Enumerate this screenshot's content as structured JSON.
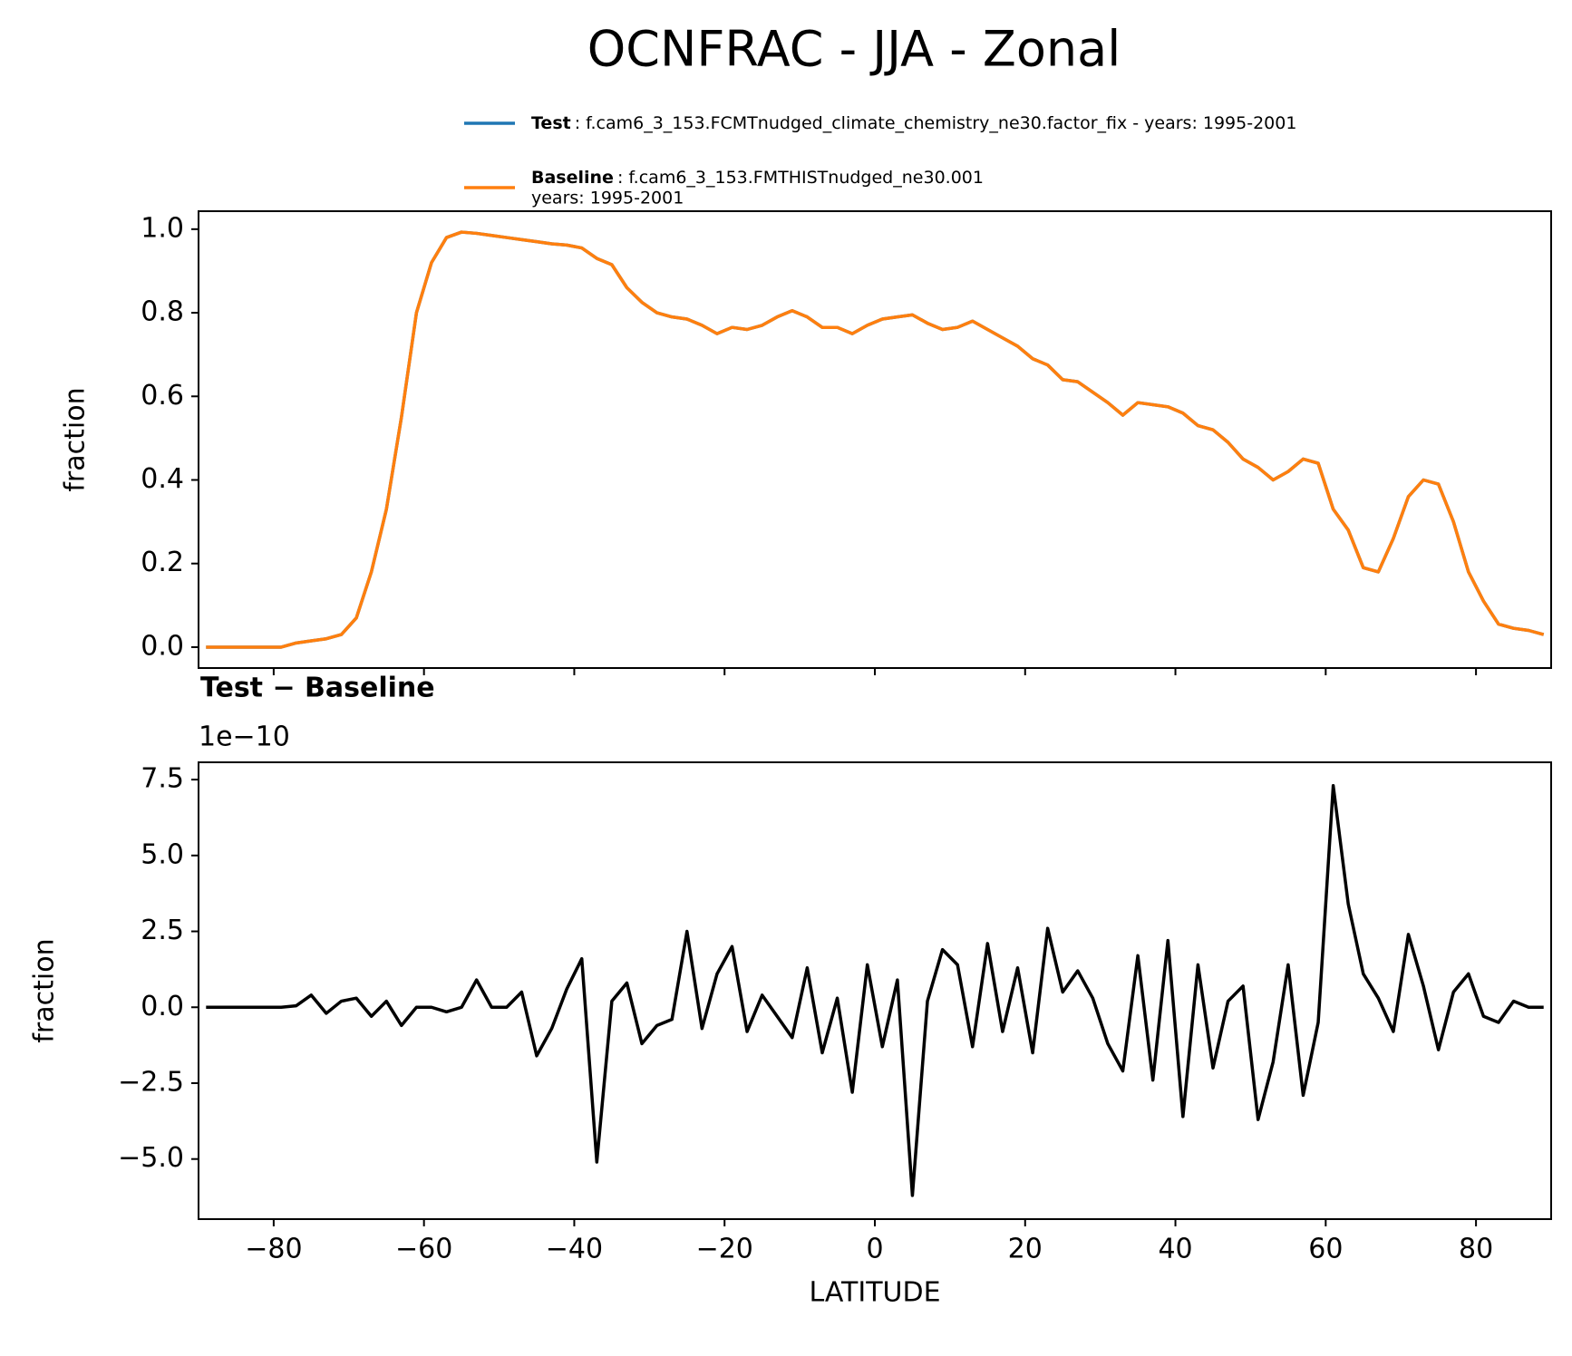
{
  "chart_data": [
    {
      "type": "line",
      "title": "OCNFRAC - JJA - Zonal",
      "ylabel": "fraction",
      "x": [
        -89,
        -87,
        -85,
        -83,
        -81,
        -79,
        -77,
        -75,
        -73,
        -71,
        -69,
        -67,
        -65,
        -63,
        -61,
        -59,
        -57,
        -55,
        -53,
        -51,
        -49,
        -47,
        -45,
        -43,
        -41,
        -39,
        -37,
        -35,
        -33,
        -31,
        -29,
        -27,
        -25,
        -23,
        -21,
        -19,
        -17,
        -15,
        -13,
        -11,
        -9,
        -7,
        -5,
        -3,
        -1,
        1,
        3,
        5,
        7,
        9,
        11,
        13,
        15,
        17,
        19,
        21,
        23,
        25,
        27,
        29,
        31,
        33,
        35,
        37,
        39,
        41,
        43,
        45,
        47,
        49,
        51,
        53,
        55,
        57,
        59,
        61,
        63,
        65,
        67,
        69,
        71,
        73,
        75,
        77,
        79,
        81,
        83,
        85,
        87,
        89
      ],
      "series": [
        {
          "name": "Test",
          "color": "#1f77b4",
          "description": [
            ": f.cam6_3_153.FCMTnudged_climate_chemistry_ne30.factor_fix - years: 1995-2001"
          ],
          "values": [
            0,
            0,
            0,
            0,
            0,
            0,
            0.01,
            0.015,
            0.02,
            0.03,
            0.07,
            0.18,
            0.33,
            0.55,
            0.8,
            0.92,
            0.98,
            0.993,
            0.99,
            0.985,
            0.98,
            0.975,
            0.97,
            0.965,
            0.962,
            0.955,
            0.93,
            0.915,
            0.86,
            0.825,
            0.8,
            0.79,
            0.785,
            0.77,
            0.75,
            0.765,
            0.76,
            0.77,
            0.79,
            0.805,
            0.79,
            0.765,
            0.765,
            0.75,
            0.77,
            0.785,
            0.79,
            0.795,
            0.775,
            0.76,
            0.765,
            0.78,
            0.76,
            0.74,
            0.72,
            0.69,
            0.675,
            0.64,
            0.635,
            0.61,
            0.585,
            0.555,
            0.585,
            0.58,
            0.575,
            0.56,
            0.53,
            0.52,
            0.49,
            0.45,
            0.43,
            0.4,
            0.42,
            0.45,
            0.44,
            0.33,
            0.28,
            0.19,
            0.18,
            0.26,
            0.36,
            0.4,
            0.39,
            0.3,
            0.18,
            0.11,
            0.055,
            0.045,
            0.04,
            0.03
          ]
        },
        {
          "name": "Baseline",
          "color": "#ff7f0e",
          "description": [
            ": f.cam6_3_153.FMTHISTnudged_ne30.001",
            "years: 1995-2001"
          ],
          "values": [
            0,
            0,
            0,
            0,
            0,
            0,
            0.01,
            0.015,
            0.02,
            0.03,
            0.07,
            0.18,
            0.33,
            0.55,
            0.8,
            0.92,
            0.98,
            0.993,
            0.99,
            0.985,
            0.98,
            0.975,
            0.97,
            0.965,
            0.962,
            0.955,
            0.93,
            0.915,
            0.86,
            0.825,
            0.8,
            0.79,
            0.785,
            0.77,
            0.75,
            0.765,
            0.76,
            0.77,
            0.79,
            0.805,
            0.79,
            0.765,
            0.765,
            0.75,
            0.77,
            0.785,
            0.79,
            0.795,
            0.775,
            0.76,
            0.765,
            0.78,
            0.76,
            0.74,
            0.72,
            0.69,
            0.675,
            0.64,
            0.635,
            0.61,
            0.585,
            0.555,
            0.585,
            0.58,
            0.575,
            0.56,
            0.53,
            0.52,
            0.49,
            0.45,
            0.43,
            0.4,
            0.42,
            0.45,
            0.44,
            0.33,
            0.28,
            0.19,
            0.18,
            0.26,
            0.36,
            0.4,
            0.39,
            0.3,
            0.18,
            0.11,
            0.055,
            0.045,
            0.04,
            0.03
          ]
        }
      ],
      "xlim": [
        -90,
        90
      ],
      "xticks": [
        -80,
        -60,
        -40,
        -20,
        0,
        20,
        40,
        60,
        80
      ],
      "ylim": [
        -0.05,
        1.043
      ],
      "yticks": [
        {
          "value": 0,
          "label": "0.0"
        },
        0.2,
        0.4,
        0.6,
        0.8,
        {
          "value": 1,
          "label": "1.0"
        }
      ]
    },
    {
      "type": "line",
      "title": "Test − Baseline",
      "ylabel": "fraction",
      "xlabel": "LATITUDE",
      "offset_label": "1e−10",
      "x": [
        -89,
        -87,
        -85,
        -83,
        -81,
        -79,
        -77,
        -75,
        -73,
        -71,
        -69,
        -67,
        -65,
        -63,
        -61,
        -59,
        -57,
        -55,
        -53,
        -51,
        -49,
        -47,
        -45,
        -43,
        -41,
        -39,
        -37,
        -35,
        -33,
        -31,
        -29,
        -27,
        -25,
        -23,
        -21,
        -19,
        -17,
        -15,
        -13,
        -11,
        -9,
        -7,
        -5,
        -3,
        -1,
        1,
        3,
        5,
        7,
        9,
        11,
        13,
        15,
        17,
        19,
        21,
        23,
        25,
        27,
        29,
        31,
        33,
        35,
        37,
        39,
        41,
        43,
        45,
        47,
        49,
        51,
        53,
        55,
        57,
        59,
        61,
        63,
        65,
        67,
        69,
        71,
        73,
        75,
        77,
        79,
        81,
        83,
        85,
        87,
        89
      ],
      "series": [
        {
          "color": "#000000",
          "values": [
            0,
            0,
            0,
            0,
            0,
            0,
            0.05,
            0.4,
            -0.2,
            0.2,
            0.3,
            -0.3,
            0.2,
            -0.6,
            0.0,
            0.0,
            -0.15,
            0.0,
            0.9,
            0.0,
            0.0,
            0.5,
            -1.6,
            -0.7,
            0.6,
            1.6,
            -5.1,
            0.2,
            0.8,
            -1.2,
            -0.6,
            -0.4,
            2.5,
            -0.7,
            1.1,
            2.0,
            -0.8,
            0.4,
            -0.3,
            -1.0,
            1.3,
            -1.5,
            0.3,
            -2.8,
            1.4,
            -1.3,
            0.9,
            -6.2,
            0.2,
            1.9,
            1.4,
            -1.3,
            2.1,
            -0.8,
            1.3,
            -1.5,
            2.6,
            0.5,
            1.2,
            0.3,
            -1.2,
            -2.1,
            1.7,
            -2.4,
            2.2,
            -3.6,
            1.4,
            -2.0,
            0.2,
            0.7,
            -3.7,
            -1.8,
            1.4,
            -2.9,
            -0.5,
            7.3,
            3.4,
            1.1,
            0.3,
            -0.8,
            2.4,
            0.7,
            -1.4,
            0.5,
            1.1,
            -0.3,
            -0.5,
            0.2,
            0.0,
            0.0
          ]
        }
      ],
      "xlim": [
        -90,
        90
      ],
      "xticks": [
        {
          "value": -80,
          "label": "−80"
        },
        {
          "value": -60,
          "label": "−60"
        },
        {
          "value": -40,
          "label": "−40"
        },
        {
          "value": -20,
          "label": "−20"
        },
        0,
        20,
        40,
        60,
        80
      ],
      "ylim": [
        -6.98,
        8.07
      ],
      "yticks": [
        {
          "value": -5,
          "label": "−5.0"
        },
        {
          "value": -2.5,
          "label": "−2.5"
        },
        {
          "value": 0,
          "label": "0.0"
        },
        2.5,
        {
          "value": 5,
          "label": "5.0"
        },
        7.5
      ]
    }
  ]
}
